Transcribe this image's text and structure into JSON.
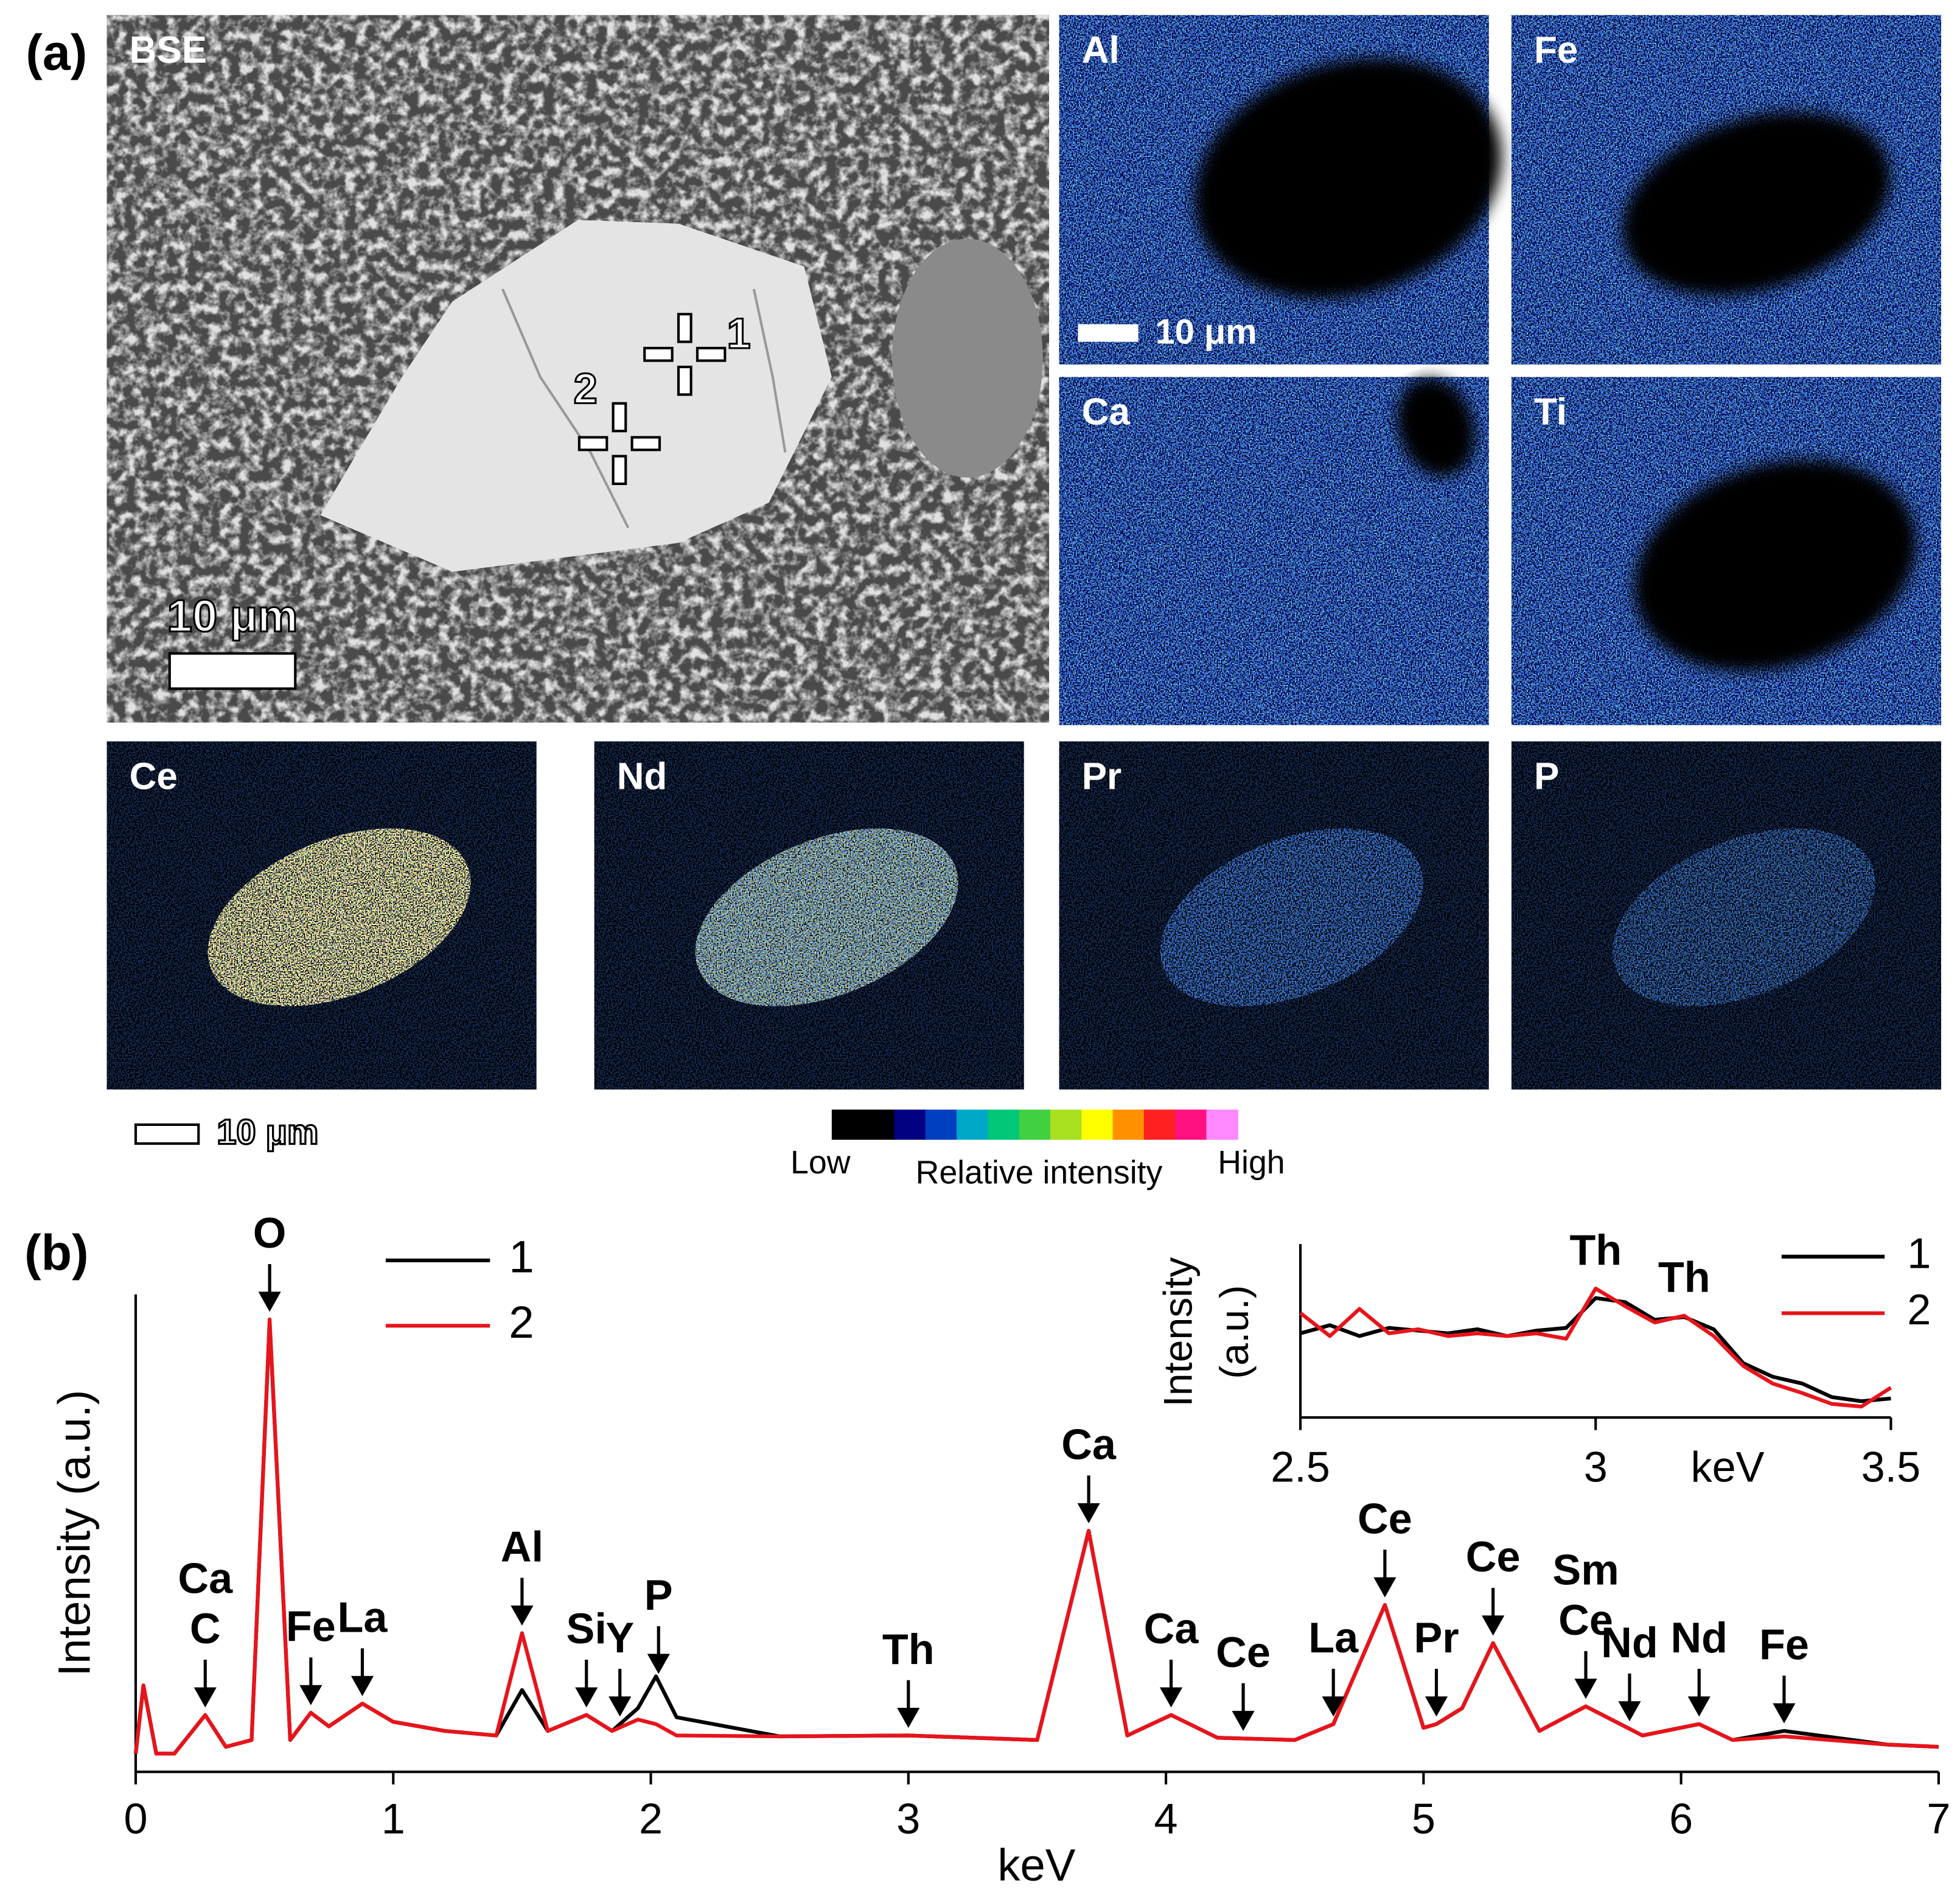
{
  "panel_a": {
    "label": "(a)",
    "maps": [
      {
        "label": "BSE"
      },
      {
        "label": "Al"
      },
      {
        "label": "Fe"
      },
      {
        "label": "Ca"
      },
      {
        "label": "Ti"
      },
      {
        "label": "Ce"
      },
      {
        "label": "Nd"
      },
      {
        "label": "Pr"
      },
      {
        "label": "P"
      }
    ],
    "scale_bars": [
      "10 μm",
      "10 μm",
      "10 μm"
    ],
    "points": [
      "1",
      "2"
    ],
    "colorbar": {
      "low": "Low",
      "title": "Relative intensity",
      "high": "High",
      "colors": [
        "#000000",
        "#000000",
        "#000080",
        "#0040c0",
        "#00a8c8",
        "#00c878",
        "#40d040",
        "#a8e020",
        "#ffff00",
        "#ff9000",
        "#ff2020",
        "#ff1080",
        "#ff88ff"
      ]
    }
  },
  "chart_data": [
    {
      "type": "line",
      "panel_label": "(b)",
      "xlabel": "keV",
      "ylabel": "Intensity (a.u.)",
      "xlim": [
        0,
        7
      ],
      "xticks": [
        0,
        1,
        2,
        3,
        4,
        5,
        6,
        7
      ],
      "ylim": [
        0,
        105
      ],
      "x": [
        0,
        0.03,
        0.08,
        0.15,
        0.27,
        0.35,
        0.45,
        0.52,
        0.6,
        0.68,
        0.75,
        0.88,
        1.0,
        1.2,
        1.4,
        1.5,
        1.6,
        1.75,
        1.85,
        1.95,
        2.02,
        2.1,
        2.5,
        3.0,
        3.5,
        3.7,
        3.85,
        4.02,
        4.2,
        4.5,
        4.65,
        4.85,
        5.0,
        5.05,
        5.15,
        5.27,
        5.45,
        5.63,
        5.85,
        6.07,
        6.2,
        6.4,
        6.8,
        7.0
      ],
      "series": [
        {
          "name": "1",
          "color": "#000000",
          "values": [
            4,
            19,
            4,
            4,
            12.5,
            5.5,
            7,
            99,
            7,
            13,
            10,
            15,
            11,
            9,
            8,
            18,
            9,
            12.5,
            9,
            14,
            21,
            12,
            7.8,
            8,
            7,
            53,
            8,
            12.5,
            7.5,
            7,
            10.5,
            36.7,
            9.7,
            10.5,
            14,
            28.3,
            9,
            14.4,
            8,
            10.5,
            7,
            9,
            6,
            5.5
          ]
        },
        {
          "name": "2",
          "color": "#e8141b",
          "values": [
            4,
            19,
            4,
            4,
            12.5,
            5.5,
            7,
            99.5,
            7,
            13,
            10,
            15,
            11,
            9,
            8,
            30.5,
            9,
            12.5,
            9,
            11.5,
            10.5,
            8,
            7.8,
            8,
            7,
            53,
            8,
            12.5,
            7.5,
            7,
            10.5,
            36.7,
            9.7,
            10.5,
            14,
            28.3,
            9,
            14.4,
            8,
            10.5,
            7,
            7.8,
            6,
            5.5
          ]
        }
      ],
      "annotations": [
        {
          "text": "Ca",
          "x": 0.27
        },
        {
          "text": "C",
          "x": 0.27
        },
        {
          "text": "O",
          "x": 0.52
        },
        {
          "text": "Fe",
          "x": 0.68
        },
        {
          "text": "La",
          "x": 0.88
        },
        {
          "text": "Al",
          "x": 1.5
        },
        {
          "text": "Si",
          "x": 1.75
        },
        {
          "text": "Y",
          "x": 1.88
        },
        {
          "text": "P",
          "x": 2.03
        },
        {
          "text": "Th",
          "x": 3.0
        },
        {
          "text": "Ca",
          "x": 3.7
        },
        {
          "text": "Ca",
          "x": 4.02
        },
        {
          "text": "Ce",
          "x": 4.3
        },
        {
          "text": "La",
          "x": 4.65
        },
        {
          "text": "Ce",
          "x": 4.85
        },
        {
          "text": "Pr",
          "x": 5.05
        },
        {
          "text": "Ce",
          "x": 5.27
        },
        {
          "text": "Sm",
          "x": 5.63
        },
        {
          "text": "Ce",
          "x": 5.63
        },
        {
          "text": "Nd",
          "x": 5.8
        },
        {
          "text": "Nd",
          "x": 6.07
        },
        {
          "text": "Fe",
          "x": 6.4
        }
      ]
    },
    {
      "type": "line",
      "xlabel": "keV",
      "ylabel_lines": [
        "Intensity",
        "(a.u.)"
      ],
      "xlim": [
        2.5,
        3.5
      ],
      "xticks": [
        2.5,
        3,
        3.5
      ],
      "ylim": [
        0,
        100
      ],
      "x": [
        2.5,
        2.55,
        2.6,
        2.65,
        2.7,
        2.75,
        2.8,
        2.85,
        2.9,
        2.95,
        3.0,
        3.05,
        3.1,
        3.15,
        3.2,
        3.25,
        3.3,
        3.35,
        3.4,
        3.45,
        3.5
      ],
      "series": [
        {
          "name": "1",
          "color": "#000000",
          "values": [
            62,
            68,
            60,
            66,
            64,
            62,
            65,
            60,
            64,
            66,
            88,
            85,
            72,
            74,
            65,
            40,
            30,
            25,
            15,
            12,
            14
          ]
        },
        {
          "name": "2",
          "color": "#e8141b",
          "values": [
            77,
            60,
            80,
            62,
            65,
            60,
            62,
            60,
            62,
            58,
            95,
            82,
            70,
            75,
            60,
            38,
            25,
            18,
            10,
            8,
            22
          ]
        }
      ],
      "annotations": [
        {
          "text": "Th",
          "x": 3.0
        },
        {
          "text": "Th",
          "x": 3.15
        }
      ]
    }
  ]
}
